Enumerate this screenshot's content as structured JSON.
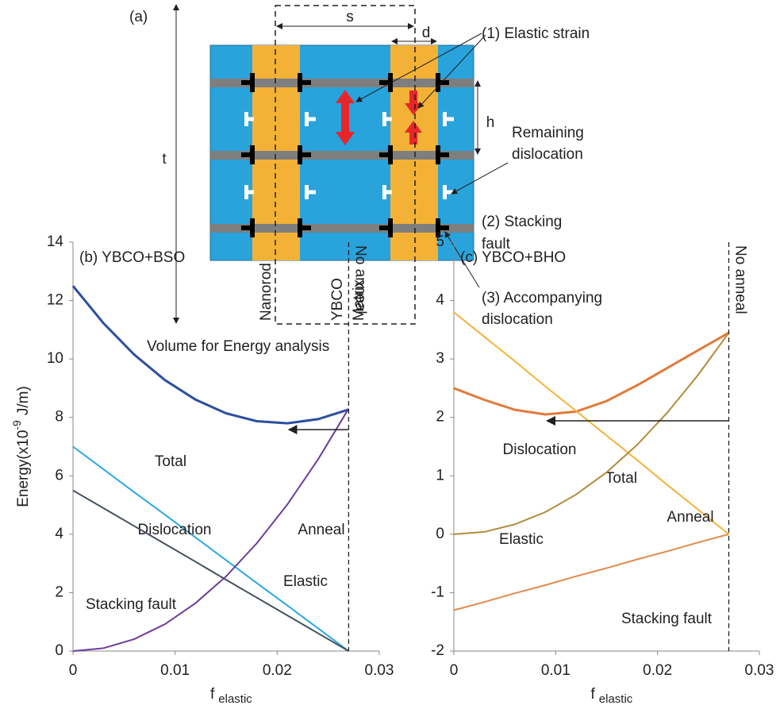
{
  "diagram": {
    "panel_label": "(a)",
    "s_label": "s",
    "d_label": "d",
    "h_label": "h",
    "t_label": "t",
    "elastic_strain": "(1) Elastic strain",
    "remaining_dislocation": [
      "Remaining",
      "dislocation"
    ],
    "stacking_fault": [
      "(2) Stacking",
      "fault"
    ],
    "accompanying_dislocation": [
      "(3) Accompanying",
      "dislocation"
    ],
    "nanorod": "Nanorod",
    "matrix": [
      "YBCO",
      "Matrix"
    ],
    "caption": "Volume for Energy analysis"
  },
  "chart_data": [
    {
      "type": "line",
      "title": "(b) YBCO+BSO",
      "ylabel": "Energy(x10",
      "ylabel_sup": "-9",
      "ylabel_unit": "J/m)",
      "xlabel": "f",
      "xlabel_sub": "elastic",
      "annotations": {
        "no_anneal": "No anneal",
        "anneal": "Anneal"
      },
      "x": [
        0,
        0.003,
        0.006,
        0.009,
        0.012,
        0.015,
        0.018,
        0.021,
        0.024,
        0.027
      ],
      "series": [
        {
          "name": "Total",
          "color": "#2b4f9e",
          "values": [
            12.5,
            11.22,
            10.15,
            9.28,
            8.61,
            8.14,
            7.87,
            7.8,
            7.94,
            8.27
          ]
        },
        {
          "name": "Dislocation",
          "color": "#2aa9e0",
          "values": [
            7,
            6.22,
            5.44,
            4.67,
            3.89,
            3.11,
            2.33,
            1.56,
            0.78,
            0
          ]
        },
        {
          "name": "Stacking fault",
          "color": "#44505f",
          "values": [
            5.5,
            4.89,
            4.28,
            3.67,
            3.06,
            2.44,
            1.83,
            1.22,
            0.61,
            0
          ]
        },
        {
          "name": "Elastic",
          "color": "#6a3d9a",
          "values": [
            0,
            0.1,
            0.41,
            0.92,
            1.64,
            2.56,
            3.69,
            5.02,
            6.56,
            8.3
          ]
        }
      ],
      "xlim": [
        0,
        0.03
      ],
      "xticks": [
        0,
        0.01,
        0.02,
        0.03
      ],
      "ylim": [
        0,
        14
      ],
      "yticks": [
        0,
        2,
        4,
        6,
        8,
        10,
        12,
        14
      ]
    },
    {
      "type": "line",
      "title": "(c) YBCO+BHO",
      "xlabel": "f",
      "xlabel_sub": "elastic",
      "annotations": {
        "no_anneal": "No anneal",
        "anneal": "Anneal"
      },
      "x": [
        0,
        0.003,
        0.006,
        0.009,
        0.012,
        0.015,
        0.018,
        0.021,
        0.024,
        0.027
      ],
      "series": [
        {
          "name": "Total",
          "color": "#e07b3a",
          "values": [
            2.5,
            2.3,
            2.13,
            2.05,
            2.1,
            2.28,
            2.55,
            2.85,
            3.15,
            3.45
          ]
        },
        {
          "name": "Dislocation",
          "color": "#f4b43a",
          "values": [
            3.8,
            3.38,
            2.96,
            2.53,
            2.11,
            1.69,
            1.27,
            0.84,
            0.42,
            0
          ]
        },
        {
          "name": "Elastic",
          "color": "#b38b3c",
          "values": [
            0,
            0.04,
            0.17,
            0.38,
            0.68,
            1.06,
            1.53,
            2.09,
            2.73,
            3.45
          ]
        },
        {
          "name": "Stacking fault",
          "color": "#e28a4a",
          "values": [
            -1.3,
            -1.16,
            -1.01,
            -0.87,
            -0.72,
            -0.58,
            -0.43,
            -0.29,
            -0.14,
            0
          ]
        }
      ],
      "xlim": [
        0,
        0.03
      ],
      "xticks": [
        0,
        0.01,
        0.02,
        0.03
      ],
      "ylim": [
        -2,
        5
      ],
      "yticks": [
        -2,
        -1,
        0,
        1,
        2,
        3,
        4,
        5
      ]
    }
  ]
}
